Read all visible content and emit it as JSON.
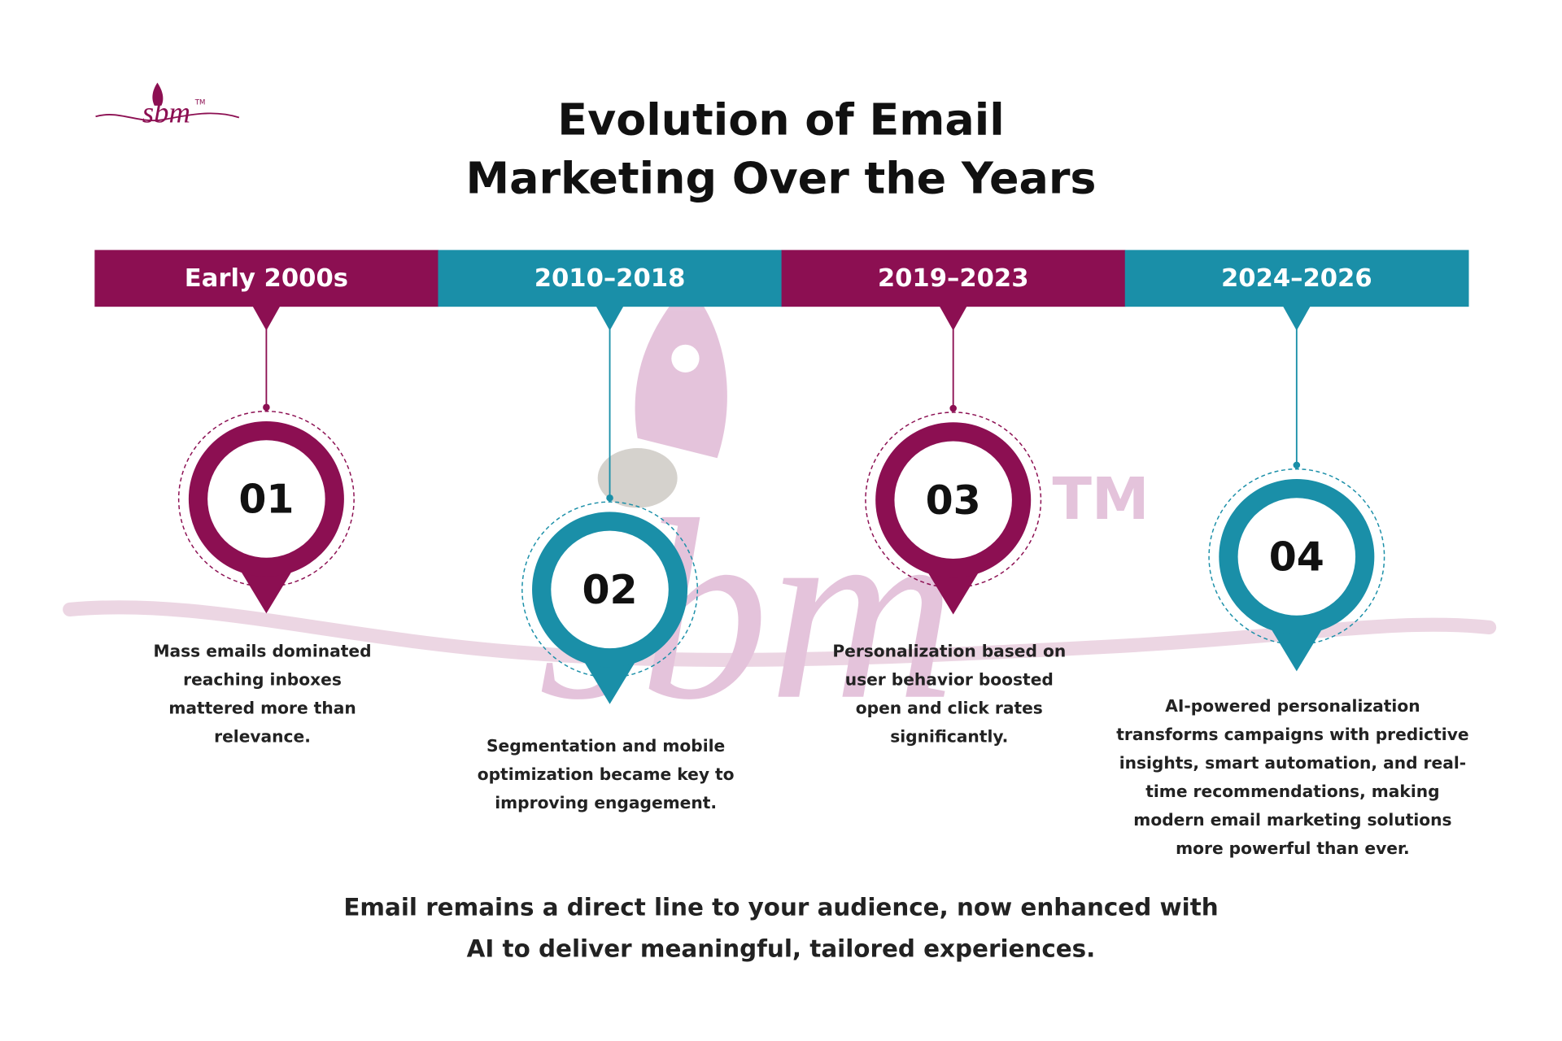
{
  "logo": {
    "text": "sbm",
    "mark": "TM"
  },
  "header": {
    "title": [
      "Evolution of Email",
      "Marketing Over the Years"
    ]
  },
  "timeline": [
    {
      "period": "Early 2000s",
      "number": "01",
      "description": [
        "Mass emails dominated",
        "reaching inboxes",
        "mattered more than",
        "relevance."
      ]
    },
    {
      "period": "2010–2018",
      "number": "02",
      "description": [
        "Segmentation and mobile",
        "optimization became key to",
        "improving engagement."
      ]
    },
    {
      "period": "2019–2023",
      "number": "03",
      "description": [
        "Personalization based on",
        "user behavior boosted",
        "open and click rates",
        "significantly."
      ]
    },
    {
      "period": "2024–2026",
      "number": "04",
      "description": [
        "AI-powered personalization",
        "transforms campaigns with predictive",
        "insights, smart automation, and real-",
        "time recommendations, making",
        "modern email marketing solutions",
        "more powerful than ever."
      ]
    }
  ],
  "footer": [
    "Email remains a direct line to your audience, now enhanced with",
    "AI to deliver meaningful, tailored experiences."
  ]
}
